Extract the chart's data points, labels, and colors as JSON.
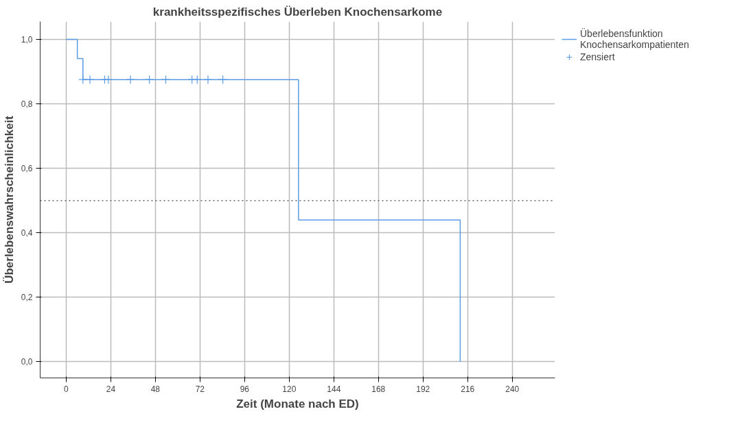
{
  "chart_data": {
    "type": "step",
    "title": "krankheitsspezifisches Überleben Knochensarkome",
    "xlabel": "Zeit (Monate nach ED)",
    "ylabel": "Überlebenswahrscheinlichkeit",
    "series": [
      {
        "name": "Überlebensfunktion Knochensarkompatienten",
        "color": "#5b9be6",
        "x": [
          0,
          6,
          9,
          125,
          212
        ],
        "values": [
          1,
          0.94,
          0.875,
          0.44,
          0
        ]
      },
      {
        "name": "Zensiert",
        "type": "scatter",
        "marker": "cross",
        "color": "#5b9be6",
        "x": [
          9,
          12.8,
          20.7,
          22.7,
          34.6,
          44.8,
          53.6,
          67.7,
          70.5,
          76.3,
          84.3
        ],
        "values": [
          0.875,
          0.875,
          0.875,
          0.875,
          0.875,
          0.875,
          0.875,
          0.875,
          0.875,
          0.875,
          0.875
        ]
      }
    ],
    "xlim": [
      -14,
      263
    ],
    "xticks": [
      0,
      24,
      48,
      72,
      96,
      120,
      144,
      168,
      192,
      216,
      240
    ],
    "ylim": [
      -0.05,
      1.055
    ],
    "yticks": [
      {
        "value": 0,
        "label": "0,0"
      },
      {
        "value": 0.2,
        "label": "0,2"
      },
      {
        "value": 0.4,
        "label": "0,4"
      },
      {
        "value": 0.6,
        "label": "0,6"
      },
      {
        "value": 0.8,
        "label": "0,8"
      },
      {
        "value": 1,
        "label": "1,0"
      }
    ],
    "ref_lines": [
      {
        "axis": "y",
        "value": 0.5,
        "color": "#666666",
        "line_style": "dotted"
      }
    ],
    "grid": true,
    "legend": "top right"
  }
}
